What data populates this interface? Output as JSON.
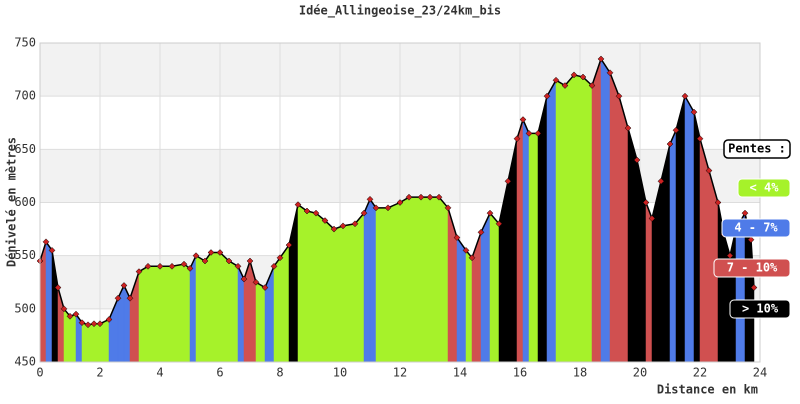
{
  "chart_data": {
    "type": "area",
    "title": "Idée_Allingeoise_23/24km_bis",
    "x_label": "Distance en km",
    "y_label": "Dénivelé en mètres",
    "x": [
      0,
      0.2,
      0.4,
      0.6,
      0.8,
      1.0,
      1.2,
      1.4,
      1.6,
      1.8,
      2.0,
      2.3,
      2.6,
      2.8,
      3.0,
      3.3,
      3.6,
      4.0,
      4.4,
      4.8,
      5.0,
      5.2,
      5.5,
      5.7,
      6.0,
      6.3,
      6.6,
      6.8,
      7.0,
      7.2,
      7.5,
      7.8,
      8.0,
      8.3,
      8.6,
      8.9,
      9.2,
      9.5,
      9.8,
      10.1,
      10.5,
      10.8,
      11.0,
      11.2,
      11.6,
      12.0,
      12.3,
      12.7,
      13.0,
      13.3,
      13.6,
      13.9,
      14.2,
      14.4,
      14.7,
      15.0,
      15.3,
      15.6,
      15.9,
      16.1,
      16.3,
      16.6,
      16.9,
      17.2,
      17.5,
      17.8,
      18.1,
      18.4,
      18.7,
      19.0,
      19.3,
      19.6,
      19.9,
      20.2,
      20.4,
      20.7,
      21.0,
      21.2,
      21.5,
      21.8,
      22.0,
      22.3,
      22.6,
      22.8,
      23.0,
      23.2,
      23.5,
      23.7,
      23.8
    ],
    "y": [
      545,
      563,
      555,
      520,
      500,
      493,
      495,
      487,
      485,
      486,
      486,
      490,
      510,
      522,
      510,
      535,
      540,
      540,
      540,
      542,
      538,
      550,
      545,
      553,
      553,
      545,
      540,
      528,
      545,
      525,
      520,
      540,
      548,
      560,
      598,
      592,
      590,
      583,
      575,
      578,
      580,
      590,
      603,
      595,
      595,
      600,
      605,
      605,
      605,
      605,
      595,
      567,
      555,
      548,
      572,
      590,
      580,
      620,
      660,
      678,
      665,
      665,
      700,
      715,
      710,
      720,
      718,
      710,
      735,
      722,
      700,
      670,
      640,
      600,
      585,
      620,
      655,
      668,
      700,
      685,
      660,
      630,
      600,
      570,
      550,
      575,
      590,
      565,
      520
    ],
    "xlim": [
      0,
      24
    ],
    "xticks": [
      0,
      2,
      4,
      6,
      8,
      10,
      12,
      14,
      16,
      18,
      20,
      22,
      24
    ],
    "ylim": [
      450,
      750
    ],
    "yticks": [
      450,
      500,
      550,
      600,
      650,
      700,
      750
    ],
    "grid": true,
    "line_color": "#000000",
    "marker_color": "#cc2222",
    "legend_title": "Pentes :",
    "slope_classes": [
      {
        "label": "< 4%",
        "color": "#a6f22a",
        "max": 4
      },
      {
        "label": "4 - 7%",
        "color": "#4f7be8",
        "max": 7
      },
      {
        "label": "7 - 10%",
        "color": "#d05050",
        "max": 10
      },
      {
        "label": "> 10%",
        "color": "#000000"
      }
    ]
  }
}
